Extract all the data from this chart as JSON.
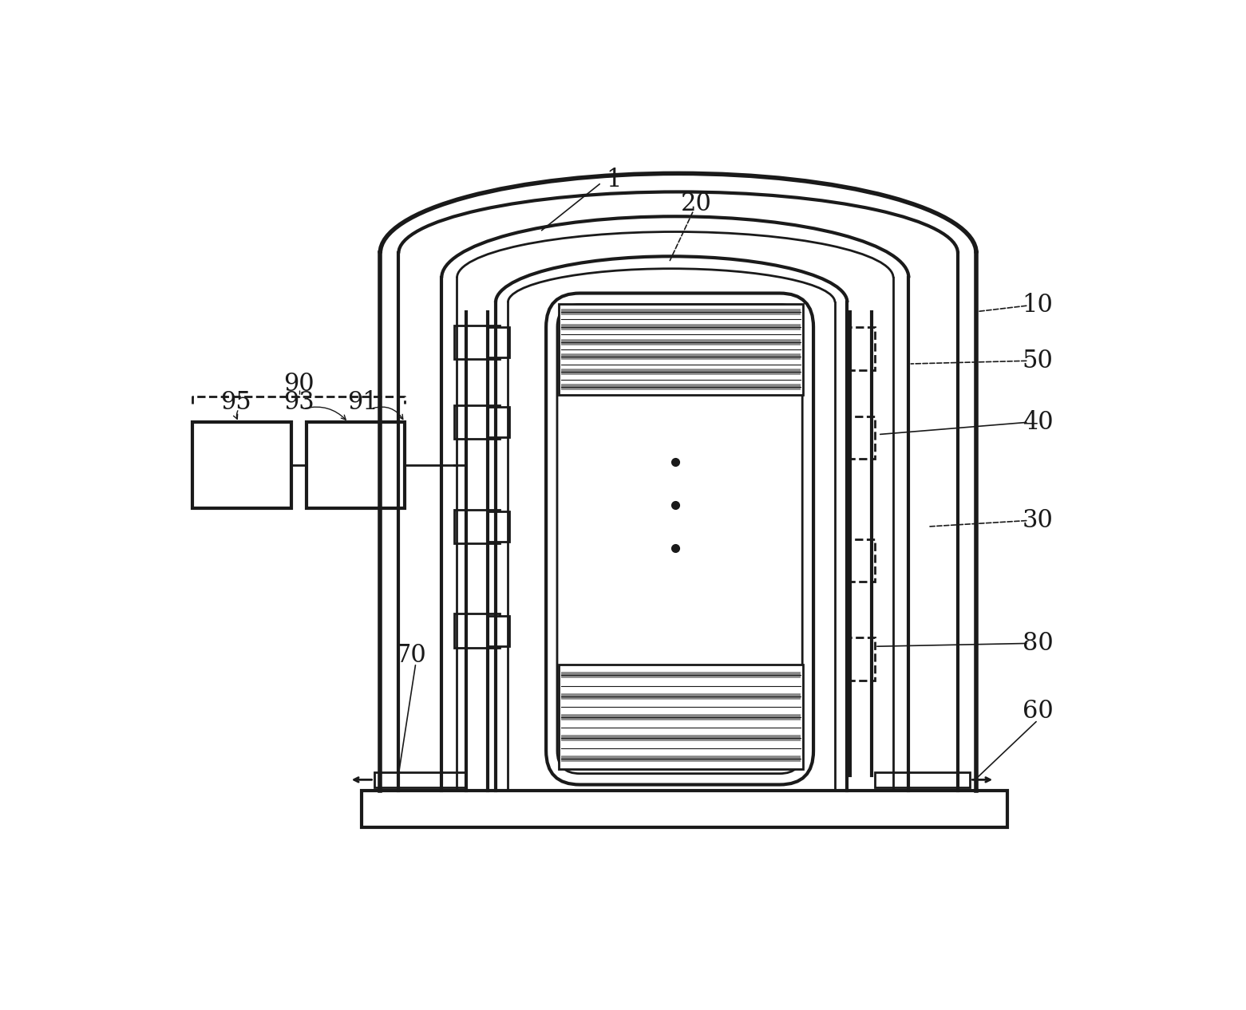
{
  "bg_color": "#ffffff",
  "line_color": "#1a1a1a",
  "figsize": [
    15.61,
    12.66
  ],
  "dpi": 100,
  "label_fontsize": 22,
  "label_color": "#1a1a1a"
}
